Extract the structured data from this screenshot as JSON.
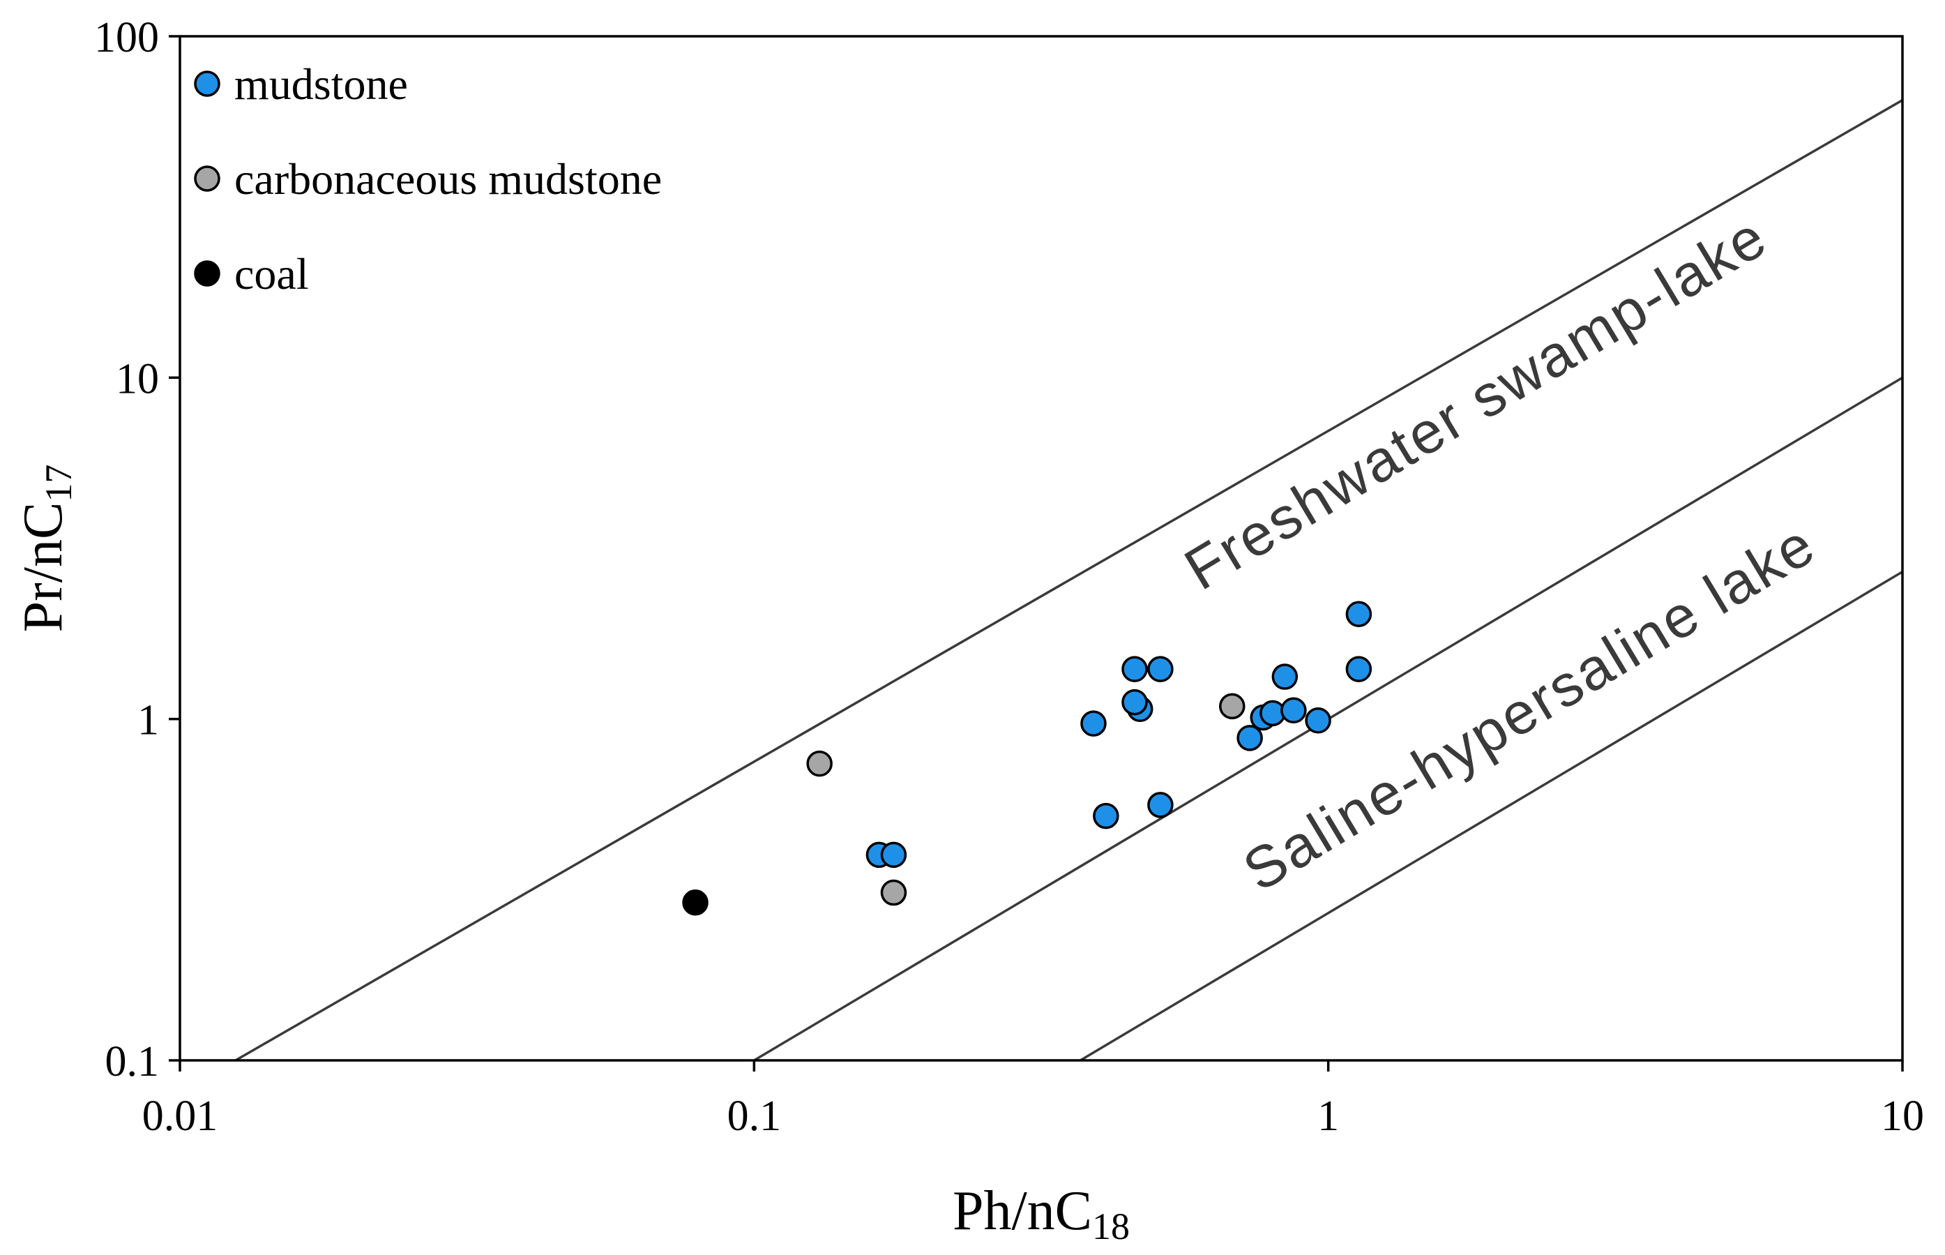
{
  "chart_data": {
    "type": "scatter",
    "x_scale": "log",
    "y_scale": "log",
    "xlim": [
      0.01,
      10
    ],
    "ylim": [
      0.1,
      100
    ],
    "x_ticks": [
      "0.01",
      "0.1",
      "1",
      "10"
    ],
    "y_ticks": [
      "0.1",
      "1",
      "10",
      "100"
    ],
    "xlabel": {
      "main": "Ph/nC",
      "sub": "18"
    },
    "ylabel": {
      "main": "Pr/nC",
      "sub": "17"
    },
    "legend_position": "top-left",
    "series": [
      {
        "name": "mudstone",
        "color": "#1e90e8",
        "points": [
          [
            0.165,
            0.4
          ],
          [
            0.175,
            0.4
          ],
          [
            0.39,
            0.97
          ],
          [
            0.41,
            0.52
          ],
          [
            0.46,
            1.4
          ],
          [
            0.47,
            1.07
          ],
          [
            0.46,
            1.12
          ],
          [
            0.51,
            1.4
          ],
          [
            0.51,
            0.56
          ],
          [
            0.73,
            0.88
          ],
          [
            0.77,
            1.01
          ],
          [
            0.8,
            1.04
          ],
          [
            0.84,
            1.33
          ],
          [
            0.87,
            1.06
          ],
          [
            0.96,
            0.99
          ],
          [
            1.13,
            1.4
          ],
          [
            1.13,
            2.03
          ]
        ]
      },
      {
        "name": "carbonaceous mudstone",
        "color": "#a6a6a6",
        "points": [
          [
            0.13,
            0.74
          ],
          [
            0.175,
            0.31
          ],
          [
            0.68,
            1.09
          ]
        ]
      },
      {
        "name": "coal",
        "color": "#000000",
        "points": [
          [
            0.079,
            0.29
          ]
        ]
      }
    ],
    "reference_lines": [
      {
        "from": [
          0.0125,
          0.1
        ],
        "to": [
          10,
          65
        ]
      },
      {
        "from": [
          0.1,
          0.1
        ],
        "to": [
          10,
          10
        ]
      },
      {
        "from": [
          0.37,
          0.1
        ],
        "to": [
          10,
          2.7
        ]
      }
    ],
    "annotations": [
      "Freshwater swamp-lake",
      "Saline-hypersaline lake"
    ]
  }
}
